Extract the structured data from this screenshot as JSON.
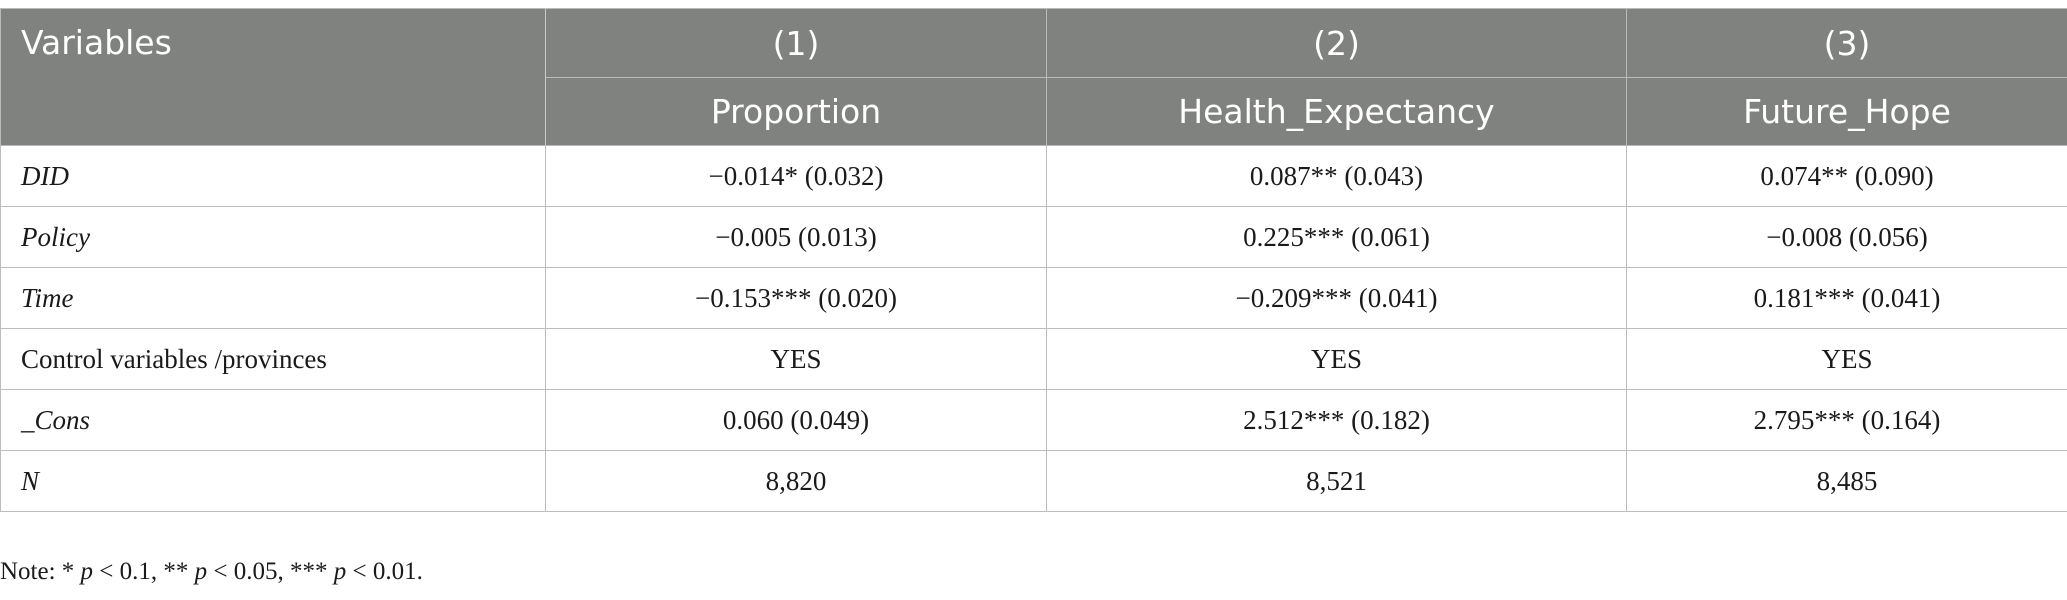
{
  "table": {
    "header_variables": "Variables",
    "model_numbers": [
      "(1)",
      "(2)",
      "(3)"
    ],
    "dependent_variables": [
      "Proportion",
      "Health_Expectancy",
      "Future_Hope"
    ],
    "rows": [
      {
        "label": "DID",
        "values": [
          "−0.014* (0.032)",
          "0.087** (0.043)",
          "0.074** (0.090)"
        ]
      },
      {
        "label": "Policy",
        "values": [
          "−0.005 (0.013)",
          "0.225*** (0.061)",
          "−0.008 (0.056)"
        ]
      },
      {
        "label": "Time",
        "values": [
          "−0.153*** (0.020)",
          "−0.209*** (0.041)",
          "0.181*** (0.041)"
        ]
      },
      {
        "label": "Control variables /provinces",
        "values": [
          "YES",
          "YES",
          "YES"
        ]
      },
      {
        "label": "_Cons",
        "values": [
          "0.060 (0.049)",
          "2.512*** (0.182)",
          "2.795*** (0.164)"
        ]
      },
      {
        "label": "N",
        "values": [
          "8,820",
          "8,521",
          "8,485"
        ]
      }
    ]
  },
  "note": {
    "prefix": "Note: * ",
    "p1": "p",
    "t1": " < 0.1, ** ",
    "p2": "p",
    "t2": " < 0.05, *** ",
    "p3": "p",
    "t3": " < 0.01."
  }
}
